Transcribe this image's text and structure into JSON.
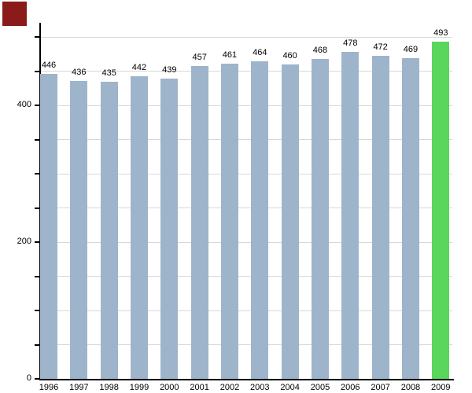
{
  "chart_data": {
    "type": "bar",
    "title": "",
    "xlabel": "",
    "ylabel": "",
    "categories": [
      "1996",
      "1997",
      "1998",
      "1999",
      "2000",
      "2001",
      "2002",
      "2003",
      "2004",
      "2005",
      "2006",
      "2007",
      "2008",
      "2009"
    ],
    "values": [
      446,
      436,
      435,
      442,
      439,
      457,
      461,
      464,
      460,
      468,
      478,
      472,
      469,
      493
    ],
    "value_labels": [
      "446",
      "436",
      "435",
      "442",
      "439",
      "457",
      "461",
      "464",
      "460",
      "468",
      "478",
      "472",
      "469",
      "493"
    ],
    "highlight_index": 13,
    "bar_color_default": "#9eb4cb",
    "bar_color_highlight": "#5ad65c",
    "ylim": [
      0,
      500
    ],
    "ytick_labeled_values": [
      0,
      200,
      400
    ],
    "ytick_labels": [
      "0",
      "200",
      "400"
    ],
    "minor_tick_step": 50,
    "grid": true,
    "gridline_color": "#d8d8d8",
    "axis_color": "#000000",
    "legend_position": "none"
  },
  "corner_marker": {
    "color": "#8b1a1a"
  }
}
